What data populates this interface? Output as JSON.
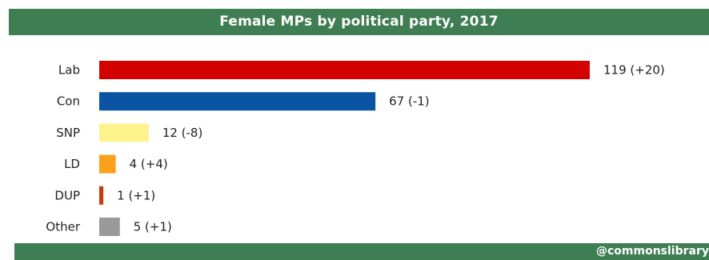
{
  "chart_data": {
    "type": "bar",
    "orientation": "horizontal",
    "title": "Female MPs by political party, 2017",
    "categories": [
      "Lab",
      "Con",
      "SNP",
      "LD",
      "DUP",
      "Other"
    ],
    "values": [
      119,
      67,
      12,
      4,
      1,
      5
    ],
    "changes": [
      "+20",
      "-1",
      "-8",
      "+4",
      "+1",
      "+1"
    ],
    "value_labels": [
      "119 (+20)",
      "67 (-1)",
      "12 (-8)",
      "4 (+4)",
      "1 (+1)",
      "5 (+1)"
    ],
    "colors": [
      "#d50000",
      "#0a55a3",
      "#fdf28b",
      "#f9a11a",
      "#cc3a0c",
      "#999999"
    ],
    "xlim": [
      0,
      119
    ],
    "grid": false,
    "legend": "none"
  },
  "footer": {
    "credit": "@commonslibrary"
  },
  "theme": {
    "banner_color": "#3f7d52"
  }
}
